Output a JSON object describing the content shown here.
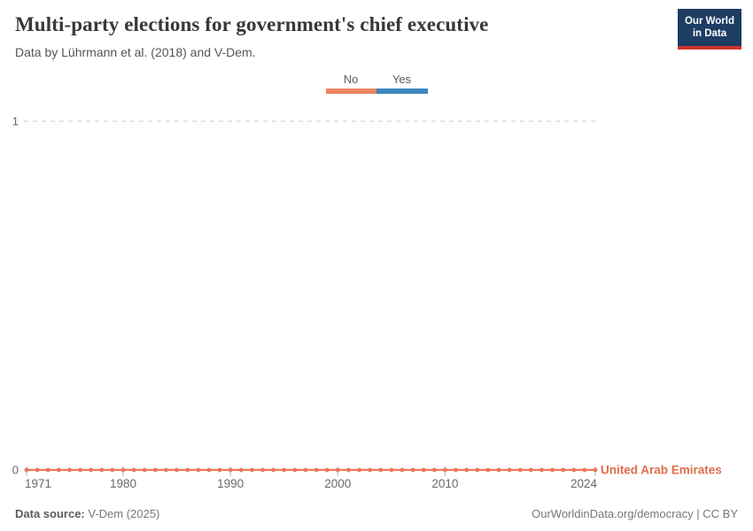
{
  "header": {
    "title": "Multi-party elections for government's chief executive",
    "subtitle": "Data by Lührmann et al. (2018) and V-Dem.",
    "logo": {
      "line1": "Our World",
      "line2": "in Data",
      "bg_color": "#1d3d63",
      "accent_color": "#d0342c"
    }
  },
  "legend": {
    "position": "top-center",
    "items": [
      {
        "label": "No",
        "value": 0,
        "color": "#ec8564"
      },
      {
        "label": "Yes",
        "value": 1,
        "color": "#3d87be"
      }
    ]
  },
  "chart_data": {
    "type": "line",
    "title": "Multi-party elections for government's chief executive",
    "entity": "United Arab Emirates",
    "x": [
      1971,
      1972,
      1973,
      1974,
      1975,
      1976,
      1977,
      1978,
      1979,
      1980,
      1981,
      1982,
      1983,
      1984,
      1985,
      1986,
      1987,
      1988,
      1989,
      1990,
      1991,
      1992,
      1993,
      1994,
      1995,
      1996,
      1997,
      1998,
      1999,
      2000,
      2001,
      2002,
      2003,
      2004,
      2005,
      2006,
      2007,
      2008,
      2009,
      2010,
      2011,
      2012,
      2013,
      2014,
      2015,
      2016,
      2017,
      2018,
      2019,
      2020,
      2021,
      2022,
      2023,
      2024
    ],
    "series": [
      {
        "name": "United Arab Emirates",
        "color": "#e8795c",
        "label_color": "#df6e4b",
        "values": [
          0,
          0,
          0,
          0,
          0,
          0,
          0,
          0,
          0,
          0,
          0,
          0,
          0,
          0,
          0,
          0,
          0,
          0,
          0,
          0,
          0,
          0,
          0,
          0,
          0,
          0,
          0,
          0,
          0,
          0,
          0,
          0,
          0,
          0,
          0,
          0,
          0,
          0,
          0,
          0,
          0,
          0,
          0,
          0,
          0,
          0,
          0,
          0,
          0,
          0,
          0,
          0,
          0,
          0
        ]
      }
    ],
    "value_labels": {
      "0": "No",
      "1": "Yes"
    },
    "xticks": [
      1971,
      1980,
      1990,
      2000,
      2010,
      2024
    ],
    "yticks": [
      0,
      1
    ],
    "ylim": [
      0,
      1
    ],
    "grid": "dashed-horizontal-at-1",
    "marker": "circle",
    "axis_text_color": "#696969",
    "grid_color": "#c8c8c8",
    "tick_color": "#b5b5b5"
  },
  "footer": {
    "data_source_label": "Data source:",
    "data_source_value": " V-Dem (2025)",
    "link": "OurWorldinData.org/democracy | CC BY"
  }
}
